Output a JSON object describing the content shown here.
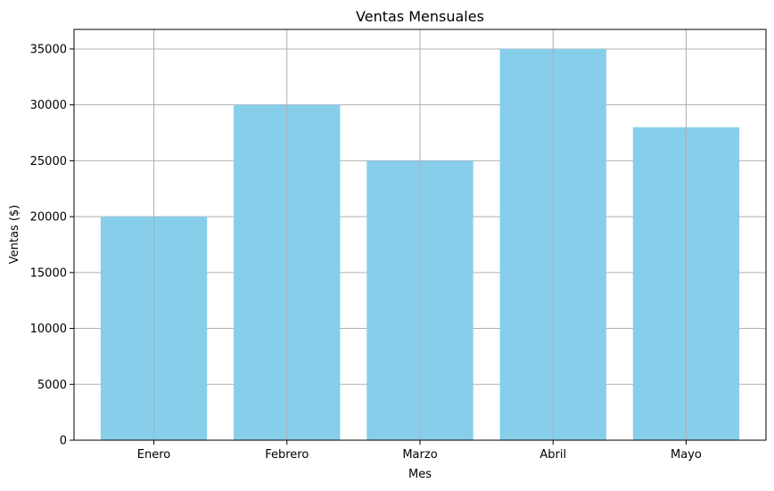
{
  "chart_data": {
    "type": "bar",
    "title": "Ventas Mensuales",
    "xlabel": "Mes",
    "ylabel": "Ventas ($)",
    "categories": [
      "Enero",
      "Febrero",
      "Marzo",
      "Abril",
      "Mayo"
    ],
    "values": [
      20000,
      30000,
      25000,
      35000,
      28000
    ],
    "ylim": [
      0,
      36750
    ],
    "yticks": [
      0,
      5000,
      10000,
      15000,
      20000,
      25000,
      30000,
      35000
    ],
    "grid": true,
    "bar_color": "#87ceeb",
    "grid_color": "#b0b0b0"
  }
}
